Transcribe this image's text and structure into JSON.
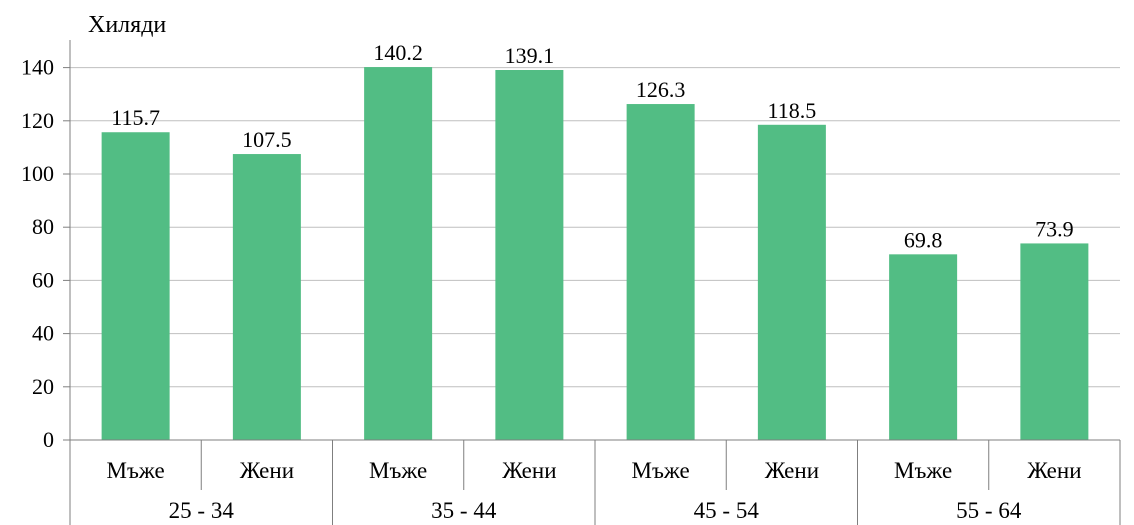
{
  "chart_data": {
    "type": "bar",
    "ylabel": "Хиляди",
    "ylim": [
      0,
      140
    ],
    "y_ticks": [
      0,
      20,
      40,
      60,
      80,
      100,
      120,
      140
    ],
    "grid": true,
    "bar_color": "#52bd84",
    "groups": [
      {
        "label": "25 - 34",
        "bars": [
          {
            "label": "Мъже",
            "value": 115.7
          },
          {
            "label": "Жени",
            "value": 107.5
          }
        ]
      },
      {
        "label": "35 - 44",
        "bars": [
          {
            "label": "Мъже",
            "value": 140.2
          },
          {
            "label": "Жени",
            "value": 139.1
          }
        ]
      },
      {
        "label": "45 - 54",
        "bars": [
          {
            "label": "Мъже",
            "value": 126.3
          },
          {
            "label": "Жени",
            "value": 118.5
          }
        ]
      },
      {
        "label": "55 - 64",
        "bars": [
          {
            "label": "Мъже",
            "value": 69.8
          },
          {
            "label": "Жени",
            "value": 73.9
          }
        ]
      }
    ]
  }
}
